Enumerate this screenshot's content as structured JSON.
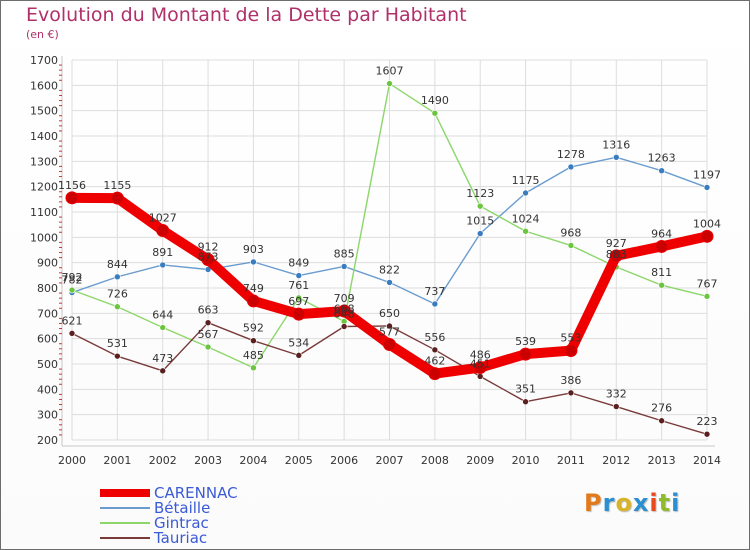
{
  "title": "Evolution du Montant de la Dette par Habitant",
  "unit": "(en €)",
  "logo": {
    "text": "Proxiti",
    "colors": [
      "#e27a1b",
      "#2c8fd1",
      "#d8b32a",
      "#2c8fd1",
      "#e84a1e",
      "#8fbc2e",
      "#2c8fd1"
    ]
  },
  "chart_data": {
    "type": "line",
    "x": [
      2000,
      2001,
      2002,
      2003,
      2004,
      2005,
      2006,
      2007,
      2008,
      2009,
      2010,
      2011,
      2012,
      2013,
      2014
    ],
    "ylim": [
      200,
      1700
    ],
    "yticks": [
      200,
      300,
      400,
      500,
      600,
      700,
      800,
      900,
      1000,
      1100,
      1200,
      1300,
      1400,
      1500,
      1600,
      1700
    ],
    "grid": true,
    "legend_position": "bottom-left",
    "series": [
      {
        "name": "CARENNAC",
        "color": "#ee0000",
        "marker": "#cc0000",
        "thick": true,
        "values": [
          1156,
          1155,
          1027,
          912,
          749,
          697,
          709,
          577,
          462,
          486,
          539,
          553,
          927,
          964,
          1004
        ],
        "labels": [
          "1156",
          "1155",
          "1027",
          "912",
          "749",
          "697",
          "709",
          "577",
          "462",
          "486",
          "539",
          "553",
          "927",
          "964",
          "1004"
        ]
      },
      {
        "name": "Bétaille",
        "color": "#6a9ccf",
        "marker": "#3a7dbf",
        "values": [
          782,
          844,
          891,
          873,
          903,
          849,
          885,
          822,
          737,
          1015,
          1175,
          1278,
          1316,
          1263,
          1197
        ],
        "labels": [
          "782",
          "844",
          "891",
          "873",
          "903",
          "849",
          "885",
          "822",
          "737",
          "1015",
          "1175",
          "1278",
          "1316",
          "1263",
          "1197"
        ]
      },
      {
        "name": "Gintrac",
        "color": "#8cd66a",
        "marker": "#6cc53f",
        "values": [
          792,
          726,
          644,
          567,
          485,
          761,
          668,
          1607,
          1490,
          1123,
          1024,
          968,
          883,
          811,
          767
        ],
        "labels": [
          "792",
          "726",
          "644",
          "567",
          "485",
          "761",
          "668",
          "1607",
          "1490",
          "1123",
          "1024",
          "968",
          "883",
          "811",
          "767"
        ]
      },
      {
        "name": "Tauriac",
        "color": "#7a3a3a",
        "marker": "#5a1f1f",
        "values": [
          621,
          531,
          473,
          663,
          592,
          534,
          648,
          650,
          556,
          451,
          351,
          386,
          332,
          276,
          223
        ],
        "labels": [
          "621",
          "531",
          "473",
          "663",
          "592",
          "534",
          "648",
          "650",
          "556",
          "451",
          "351",
          "386",
          "332",
          "276",
          "223"
        ]
      }
    ]
  }
}
